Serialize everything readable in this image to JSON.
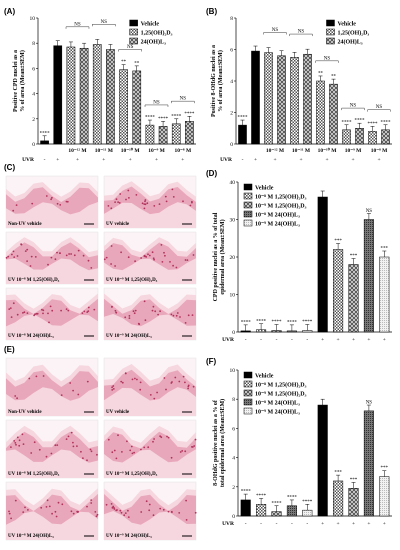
{
  "panels": {
    "A": "(A)",
    "B": "(B)",
    "C": "(C)",
    "D": "(D)",
    "E": "(E)",
    "F": "(F)"
  },
  "colors": {
    "tissue": "#e8a7bb",
    "tissue_light": "#f6d6df",
    "nuclei": "#b2345e"
  },
  "micro": {
    "C": [
      "Non-UV vehicle",
      "UV vehicle",
      "UV 10⁻⁸ M 1,25(OH)₂D₃",
      "UV 10⁻⁹ M 1,25(OH)₂D₃",
      "UV 10⁻⁸ M 24(OH)L₃",
      "UV 10⁻⁹ M 24(OH)L₃"
    ],
    "E": [
      "Non-UV vehicle",
      "UV vehicle",
      "UV 10⁻⁸ M 1,25(OH)₂D₃",
      "UV 10⁻⁹ M 1,25(OH)₂D₃",
      "UV 10⁻⁸ M 24(OH)L₃",
      "UV 10⁻⁹ M 24(OH)L₃"
    ]
  },
  "chart_data": [
    {
      "id": "A",
      "type": "bar",
      "ylabel": "Positive CPD nuclei as a\n% of area (Mean±SEM)",
      "ylim": [
        0,
        10
      ],
      "yticks": [
        0,
        2,
        4,
        6,
        8,
        10
      ],
      "legend": [
        "Vehicle",
        "1,25(OH)₂D₃",
        "24(OH)L₃"
      ],
      "legend_position": "top-right",
      "groups": [
        "",
        "",
        "10⁻¹² M",
        "10⁻¹¹ M",
        "10⁻¹⁰ M",
        "10⁻⁹ M",
        "10⁻⁸ M"
      ],
      "uvr": [
        "-",
        "+",
        "+",
        "+",
        "+",
        "+",
        "+"
      ],
      "uvr_label": "UVR",
      "bars": [
        {
          "group": 0,
          "series": 0,
          "value": 0.25,
          "sig": "****"
        },
        {
          "group": 1,
          "series": 0,
          "value": 7.8,
          "sig": ""
        },
        {
          "group": 2,
          "series": 1,
          "value": 7.7,
          "sig": ""
        },
        {
          "group": 2,
          "series": 2,
          "value": 7.6,
          "sig": ""
        },
        {
          "group": 3,
          "series": 1,
          "value": 7.9,
          "sig": ""
        },
        {
          "group": 3,
          "series": 2,
          "value": 7.5,
          "sig": ""
        },
        {
          "group": 4,
          "series": 1,
          "value": 5.9,
          "sig": "**"
        },
        {
          "group": 4,
          "series": 2,
          "value": 5.8,
          "sig": "**"
        },
        {
          "group": 5,
          "series": 1,
          "value": 1.5,
          "sig": "****"
        },
        {
          "group": 5,
          "series": 2,
          "value": 1.4,
          "sig": "****"
        },
        {
          "group": 6,
          "series": 1,
          "value": 1.6,
          "sig": "****"
        },
        {
          "group": 6,
          "series": 2,
          "value": 1.8,
          "sig": "****"
        }
      ],
      "ns_label": "NS"
    },
    {
      "id": "B",
      "type": "bar",
      "ylabel": "Positive 8-OHdG nuclei as a\n% of area (Mean±SEM)",
      "ylim": [
        0,
        8
      ],
      "yticks": [
        0,
        2,
        4,
        6,
        8
      ],
      "legend": [
        "Vehicle",
        "1,25(OH)₂D₃",
        "24(OH)L₃"
      ],
      "legend_position": "top-right",
      "groups": [
        "",
        "",
        "10⁻¹² M",
        "10⁻¹¹ M",
        "10⁻¹⁰ M",
        "10⁻⁹ M",
        "10⁻⁸ M"
      ],
      "uvr": [
        "-",
        "+",
        "+",
        "+",
        "+",
        "+",
        "+"
      ],
      "uvr_label": "UVR",
      "bars": [
        {
          "group": 0,
          "series": 0,
          "value": 1.2,
          "sig": "****"
        },
        {
          "group": 1,
          "series": 0,
          "value": 5.9,
          "sig": ""
        },
        {
          "group": 2,
          "series": 1,
          "value": 5.8,
          "sig": ""
        },
        {
          "group": 2,
          "series": 2,
          "value": 5.6,
          "sig": ""
        },
        {
          "group": 3,
          "series": 1,
          "value": 5.5,
          "sig": ""
        },
        {
          "group": 3,
          "series": 2,
          "value": 5.7,
          "sig": ""
        },
        {
          "group": 4,
          "series": 1,
          "value": 4.0,
          "sig": "**"
        },
        {
          "group": 4,
          "series": 2,
          "value": 3.8,
          "sig": "**"
        },
        {
          "group": 5,
          "series": 1,
          "value": 0.9,
          "sig": "****"
        },
        {
          "group": 5,
          "series": 2,
          "value": 1.0,
          "sig": "****"
        },
        {
          "group": 6,
          "series": 1,
          "value": 0.8,
          "sig": "****"
        },
        {
          "group": 6,
          "series": 2,
          "value": 0.9,
          "sig": "****"
        }
      ],
      "ns_label": "NS"
    },
    {
      "id": "D",
      "type": "bar",
      "ylabel": "CPD positive nuclei as a % of total\nepidermal area (Mean±SEM)",
      "ylim": [
        0,
        40
      ],
      "yticks": [
        0,
        10,
        20,
        30,
        40
      ],
      "legend": [
        "Vehicle",
        "10⁻⁸ M 1,25(OH)₂D₃",
        "10⁻⁹ M 1,25(OH)₂D₃",
        "10⁻⁸ M 24(OH)L₃",
        "10⁻⁹ M 24(OH)L₃"
      ],
      "legend_position": "top-left",
      "uvr": [
        "-",
        "-",
        "-",
        "-",
        "-",
        "+",
        "+",
        "+",
        "+",
        "+"
      ],
      "uvr_label": "UVR",
      "bars": [
        {
          "series": 0,
          "value": 0.3,
          "sig": "****"
        },
        {
          "series": 1,
          "value": 0.6,
          "sig": "****"
        },
        {
          "series": 2,
          "value": 0.4,
          "sig": "****"
        },
        {
          "series": 3,
          "value": 0.3,
          "sig": "****"
        },
        {
          "series": 4,
          "value": 0.4,
          "sig": "****"
        },
        {
          "series": 0,
          "value": 36,
          "sig": ""
        },
        {
          "series": 1,
          "value": 22,
          "sig": "***"
        },
        {
          "series": 2,
          "value": 18,
          "sig": "***"
        },
        {
          "series": 3,
          "value": 30,
          "sig": "NS"
        },
        {
          "series": 4,
          "value": 20,
          "sig": "***"
        }
      ]
    },
    {
      "id": "F",
      "type": "bar",
      "ylabel": "8-OHdG positive nuclei as a % of\ntotal epidermal area (Mean±SEM)",
      "ylim": [
        0,
        10
      ],
      "yticks": [
        0,
        2,
        4,
        6,
        8,
        10
      ],
      "legend": [
        "Vehicle",
        "10⁻⁸ M 1,25(OH)₂D₃",
        "10⁻⁹ M 1,25(OH)₂D₃",
        "10⁻⁸ M 24(OH)L₃",
        "10⁻⁹ M 24(OH)L₃"
      ],
      "legend_position": "top-left",
      "uvr": [
        "-",
        "-",
        "-",
        "-",
        "-",
        "+",
        "+",
        "+",
        "+",
        "+"
      ],
      "uvr_label": "UVR",
      "bars": [
        {
          "series": 0,
          "value": 1.1,
          "sig": "****"
        },
        {
          "series": 1,
          "value": 0.8,
          "sig": "****"
        },
        {
          "series": 2,
          "value": 0.3,
          "sig": "****"
        },
        {
          "series": 3,
          "value": 0.7,
          "sig": "****"
        },
        {
          "series": 4,
          "value": 0.4,
          "sig": "****"
        },
        {
          "series": 0,
          "value": 7.6,
          "sig": ""
        },
        {
          "series": 1,
          "value": 2.4,
          "sig": "***"
        },
        {
          "series": 2,
          "value": 1.9,
          "sig": "***"
        },
        {
          "series": 3,
          "value": 7.2,
          "sig": "NS"
        },
        {
          "series": 4,
          "value": 2.7,
          "sig": "***"
        }
      ]
    }
  ]
}
